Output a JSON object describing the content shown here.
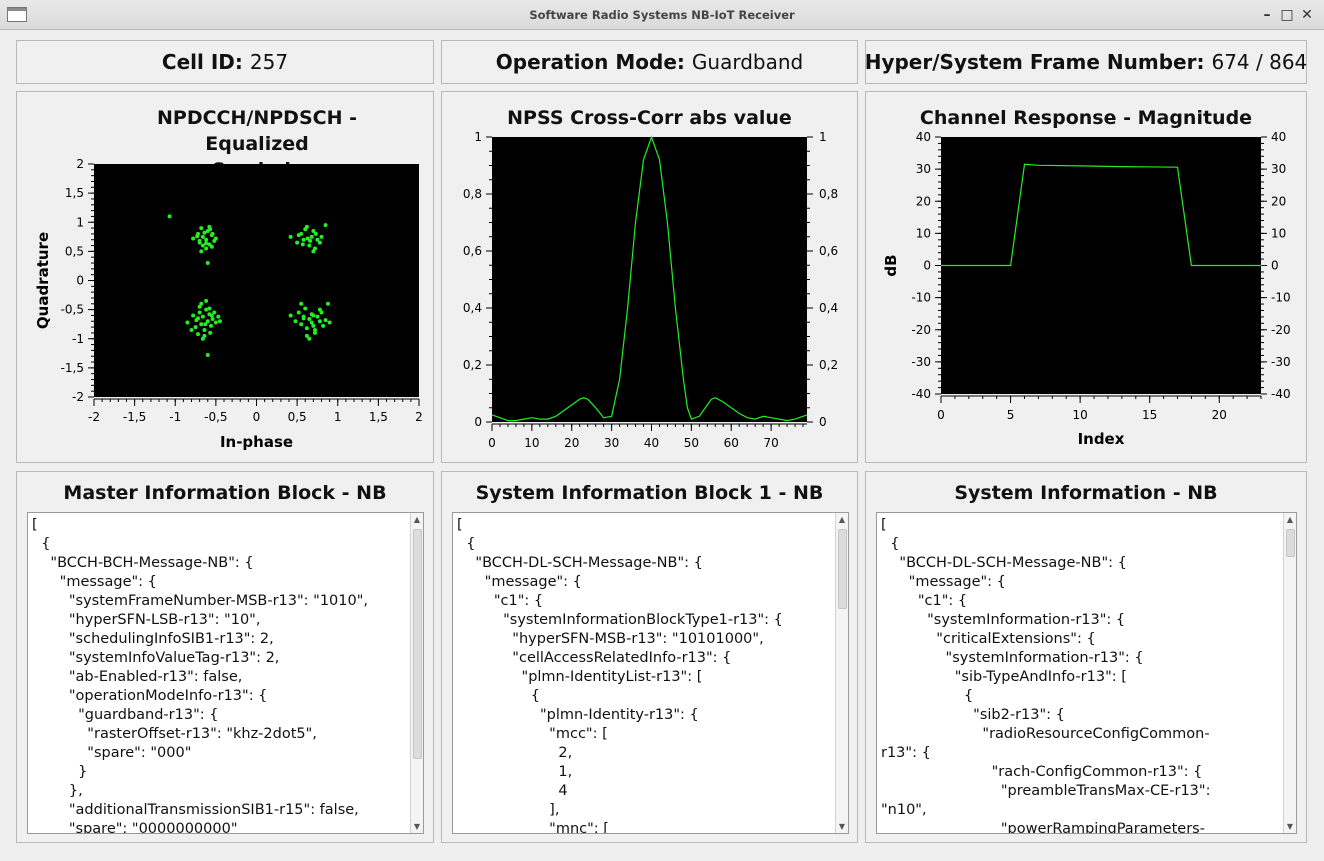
{
  "window": {
    "title": "Software Radio Systems NB-IoT Receiver",
    "min_glyph": "–",
    "max_glyph": "□",
    "close_glyph": "✕"
  },
  "info": {
    "cell_id_label": "Cell ID:",
    "cell_id_value": "257",
    "op_mode_label": "Operation Mode:",
    "op_mode_value": "Guardband",
    "frame_label": "Hyper/System Frame Number:",
    "frame_value": "674 / 864"
  },
  "constellation": {
    "title_line1": "NPDCCH/NPDSCH - Equalized",
    "title_line2": "Symbols",
    "xlabel": "In-phase",
    "ylabel": "Quadrature",
    "xticks": [
      "-2",
      "-1,5",
      "-1",
      "-0,5",
      "0",
      "0,5",
      "1",
      "1,5",
      "2"
    ],
    "yticks": [
      "2",
      "1,5",
      "1",
      "0,5",
      "0",
      "-0,5",
      "-1",
      "-1,5",
      "-2"
    ],
    "point_color": "#22ee22",
    "clusters": [
      {
        "i": -0.65,
        "q": 0.72
      },
      {
        "i": 0.65,
        "q": 0.72
      },
      {
        "i": -0.65,
        "q": -0.68
      },
      {
        "i": 0.65,
        "q": -0.68
      }
    ]
  },
  "npss": {
    "title": "NPSS Cross-Corr abs value",
    "yticks": [
      "1",
      "0,8",
      "0,6",
      "0,4",
      "0,2",
      "0"
    ],
    "xticks": [
      "0",
      "10",
      "20",
      "30",
      "40",
      "50",
      "60",
      "70"
    ],
    "line_color": "#22ee22"
  },
  "channel": {
    "title": "Channel Response - Magnitude",
    "xlabel": "Index",
    "ylabel": "dB",
    "yticks": [
      "40",
      "30",
      "20",
      "10",
      "0",
      "-10",
      "-20",
      "-30",
      "-40"
    ],
    "xticks": [
      "0",
      "5",
      "10",
      "15",
      "20"
    ],
    "line_color": "#22ee22"
  },
  "chart_data": [
    {
      "type": "scatter",
      "title": "NPDCCH/NPDSCH - Equalized Symbols",
      "xlabel": "In-phase",
      "ylabel": "Quadrature",
      "xlim": [
        -2,
        2
      ],
      "ylim": [
        -2,
        2
      ],
      "series": [
        {
          "x": [
            -1.07,
            -0.78,
            -0.72,
            -0.7,
            -0.68,
            -0.66,
            -0.62,
            -0.6,
            -0.58,
            -0.55,
            -0.52,
            -0.5,
            -0.62,
            -0.58,
            -0.66,
            -0.73,
            -0.55,
            -0.6,
            -0.7,
            -0.64,
            -0.57,
            -0.68,
            -0.62,
            -0.54
          ],
          "y": [
            1.1,
            0.72,
            0.8,
            0.65,
            0.9,
            0.75,
            0.7,
            0.85,
            0.62,
            0.78,
            0.68,
            0.72,
            0.55,
            0.92,
            0.6,
            0.76,
            0.58,
            0.3,
            0.68,
            0.82,
            0.88,
            0.5,
            0.64,
            0.8
          ]
        },
        {
          "x": [
            0.42,
            0.5,
            0.55,
            0.58,
            0.62,
            0.65,
            0.68,
            0.7,
            0.72,
            0.75,
            0.78,
            0.6,
            0.52,
            0.66,
            0.8,
            0.85,
            0.73,
            0.63,
            0.57,
            0.7
          ],
          "y": [
            0.75,
            0.65,
            0.8,
            0.7,
            0.92,
            0.6,
            0.75,
            0.85,
            0.55,
            0.7,
            0.65,
            0.88,
            0.78,
            0.68,
            0.75,
            0.95,
            0.8,
            0.72,
            0.62,
            0.5
          ]
        },
        {
          "x": [
            -0.85,
            -0.78,
            -0.75,
            -0.72,
            -0.7,
            -0.68,
            -0.66,
            -0.64,
            -0.62,
            -0.6,
            -0.58,
            -0.56,
            -0.54,
            -0.52,
            -0.5,
            -0.47,
            -0.45,
            -0.8,
            -0.7,
            -0.62,
            -0.57,
            -0.66,
            -0.74,
            -0.6,
            -0.55,
            -0.68,
            -0.64,
            -0.58,
            -0.72,
            -0.63
          ],
          "y": [
            -0.72,
            -0.6,
            -0.8,
            -0.65,
            -0.55,
            -0.75,
            -0.62,
            -0.85,
            -0.5,
            -0.7,
            -0.58,
            -0.78,
            -0.66,
            -0.55,
            -0.72,
            -0.62,
            -0.7,
            -0.85,
            -0.45,
            -0.35,
            -0.9,
            -1.0,
            -0.68,
            -1.28,
            -0.6,
            -0.4,
            -0.95,
            -0.48,
            -0.92,
            -0.75
          ]
        },
        {
          "x": [
            0.42,
            0.48,
            0.52,
            0.55,
            0.58,
            0.6,
            0.62,
            0.65,
            0.68,
            0.7,
            0.72,
            0.75,
            0.78,
            0.8,
            0.82,
            0.85,
            0.88,
            0.9,
            0.55,
            0.65,
            0.72,
            0.62,
            0.68,
            0.78,
            0.58,
            0.7
          ],
          "y": [
            -0.6,
            -0.7,
            -0.55,
            -0.75,
            -0.62,
            -0.48,
            -0.82,
            -0.66,
            -0.58,
            -0.78,
            -0.9,
            -0.62,
            -0.7,
            -0.55,
            -0.78,
            -0.68,
            -0.4,
            -0.72,
            -0.4,
            -1.0,
            -0.85,
            -0.95,
            -0.72,
            -0.5,
            -0.65,
            -0.6
          ]
        }
      ]
    },
    {
      "type": "line",
      "title": "NPSS Cross-Corr abs value",
      "xlim": [
        0,
        79
      ],
      "ylim": [
        0,
        1
      ],
      "series": [
        {
          "x": [
            0,
            2,
            4,
            6,
            8,
            10,
            12,
            14,
            16,
            18,
            20,
            22,
            23,
            24,
            26,
            28,
            30,
            32,
            34,
            36,
            38,
            40,
            42,
            44,
            46,
            48,
            49,
            50,
            52,
            54,
            55,
            56,
            58,
            60,
            62,
            64,
            66,
            68,
            70,
            72,
            74,
            76,
            78,
            79
          ],
          "y": [
            0.025,
            0.015,
            0.005,
            0.005,
            0.01,
            0.015,
            0.01,
            0.01,
            0.02,
            0.04,
            0.06,
            0.08,
            0.085,
            0.08,
            0.05,
            0.015,
            0.02,
            0.15,
            0.4,
            0.7,
            0.92,
            1.0,
            0.92,
            0.7,
            0.4,
            0.15,
            0.05,
            0.01,
            0.02,
            0.06,
            0.08,
            0.085,
            0.07,
            0.05,
            0.03,
            0.015,
            0.01,
            0.02,
            0.015,
            0.01,
            0.005,
            0.01,
            0.02,
            0.025
          ]
        }
      ]
    },
    {
      "type": "line",
      "title": "Channel Response - Magnitude",
      "xlabel": "Index",
      "ylabel": "dB",
      "xlim": [
        0,
        23
      ],
      "ylim": [
        -40,
        40
      ],
      "series": [
        {
          "x": [
            0,
            5,
            6,
            7,
            10,
            13,
            17,
            18,
            23
          ],
          "y": [
            0,
            0,
            31.5,
            31.2,
            31,
            30.8,
            30.6,
            0,
            0
          ]
        }
      ]
    }
  ],
  "mib": {
    "title": "Master Information Block - NB",
    "text": "[\n  {\n    \"BCCH-BCH-Message-NB\": {\n      \"message\": {\n        \"systemFrameNumber-MSB-r13\": \"1010\",\n        \"hyperSFN-LSB-r13\": \"10\",\n        \"schedulingInfoSIB1-r13\": 2,\n        \"systemInfoValueTag-r13\": 2,\n        \"ab-Enabled-r13\": false,\n        \"operationModeInfo-r13\": {\n          \"guardband-r13\": {\n            \"rasterOffset-r13\": \"khz-2dot5\",\n            \"spare\": \"000\"\n          }\n        },\n        \"additionalTransmissionSIB1-r15\": false,\n        \"spare\": \"0000000000\""
  },
  "sib1": {
    "title": "System Information Block 1 - NB",
    "text": "[\n  {\n    \"BCCH-DL-SCH-Message-NB\": {\n      \"message\": {\n        \"c1\": {\n          \"systemInformationBlockType1-r13\": {\n            \"hyperSFN-MSB-r13\": \"10101000\",\n            \"cellAccessRelatedInfo-r13\": {\n              \"plmn-IdentityList-r13\": [\n                {\n                  \"plmn-Identity-r13\": {\n                    \"mcc\": [\n                      2,\n                      1,\n                      4\n                    ],\n                    \"mnc\": ["
  },
  "si": {
    "title": "System Information - NB",
    "text": "[\n  {\n    \"BCCH-DL-SCH-Message-NB\": {\n      \"message\": {\n        \"c1\": {\n          \"systemInformation-r13\": {\n            \"criticalExtensions\": {\n              \"systemInformation-r13\": {\n                \"sib-TypeAndInfo-r13\": [\n                  {\n                    \"sib2-r13\": {\n                      \"radioResourceConfigCommon-\nr13\": {\n                        \"rach-ConfigCommon-r13\": {\n                          \"preambleTransMax-CE-r13\":\n\"n10\",\n                          \"powerRampingParameters-"
  }
}
